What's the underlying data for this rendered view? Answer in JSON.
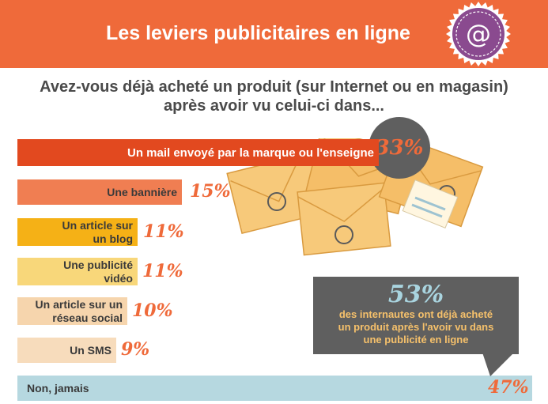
{
  "header": {
    "title": "Les leviers publicitaires en ligne",
    "icon": "at-sign-icon",
    "colors": {
      "banner": "#ef6a3a",
      "badge": "#8a4a8f"
    }
  },
  "question": {
    "line1": "Avez-vous déjà acheté un produit (sur Internet ou en magasin)",
    "line2": "après avoir vu celui-ci dans..."
  },
  "chart_data": {
    "type": "bar",
    "orientation": "horizontal",
    "title": "Avez-vous déjà acheté un produit (sur Internet ou en magasin) après avoir vu celui-ci dans...",
    "unit": "%",
    "categories": [
      [
        "Un mail envoyé par la marque ou l'enseigne"
      ],
      [
        "Une bannière"
      ],
      [
        "Un article sur",
        "un blog"
      ],
      [
        "Une publicité",
        "vidéo"
      ],
      [
        "Un article sur un",
        "réseau social"
      ],
      [
        "Un SMS"
      ],
      [
        "Non, jamais"
      ]
    ],
    "values": [
      33,
      15,
      11,
      11,
      10,
      9,
      47
    ],
    "value_labels": [
      "33%",
      "15%",
      "11%",
      "11%",
      "10%",
      "9%",
      "47%"
    ],
    "bar_colors": [
      "#e2491f",
      "#f07e52",
      "#f5b116",
      "#f8d77a",
      "#f6d5ad",
      "#f7dcbc",
      "#b6d8e0"
    ]
  },
  "callout": {
    "value": "53%",
    "lines": [
      "des internautes ont déjà acheté",
      "un produit après l'avoir vu dans",
      "une publicité en ligne"
    ]
  }
}
